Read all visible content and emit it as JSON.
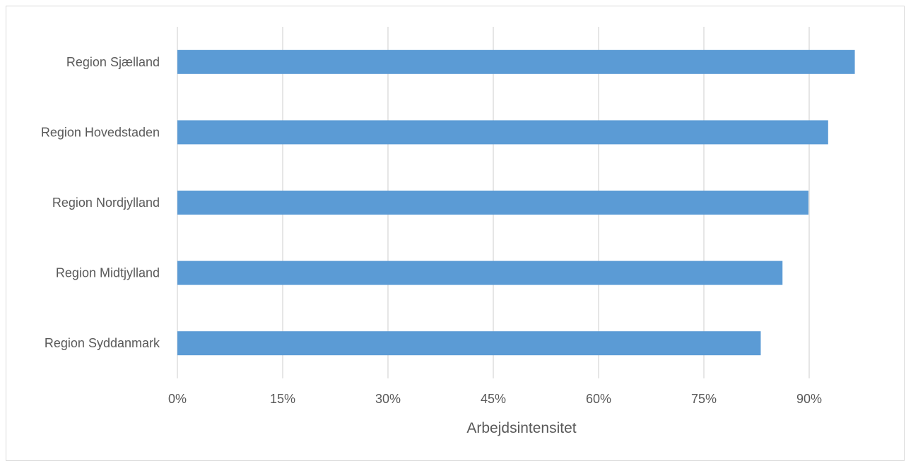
{
  "chart_data": {
    "type": "bar",
    "orientation": "horizontal",
    "title": "",
    "xlabel": "Arbejdsintensitet",
    "ylabel": "",
    "categories": [
      "Region Sjælland",
      "Region Hovedstaden",
      "Region Nordjylland",
      "Region Midtjylland",
      "Region Syddanmark"
    ],
    "values": [
      96.5,
      92.7,
      89.9,
      86.2,
      83.1
    ],
    "unit": "%",
    "xlim": [
      0,
      96.5
    ],
    "xticks": [
      0,
      15,
      30,
      45,
      60,
      75,
      90
    ],
    "xtick_labels": [
      "0%",
      "15%",
      "30%",
      "45%",
      "60%",
      "75%",
      "90%"
    ],
    "grid": "vertical",
    "legend": "none",
    "bar_color": "#5b9bd5",
    "grid_color": "#d9d9d9"
  }
}
